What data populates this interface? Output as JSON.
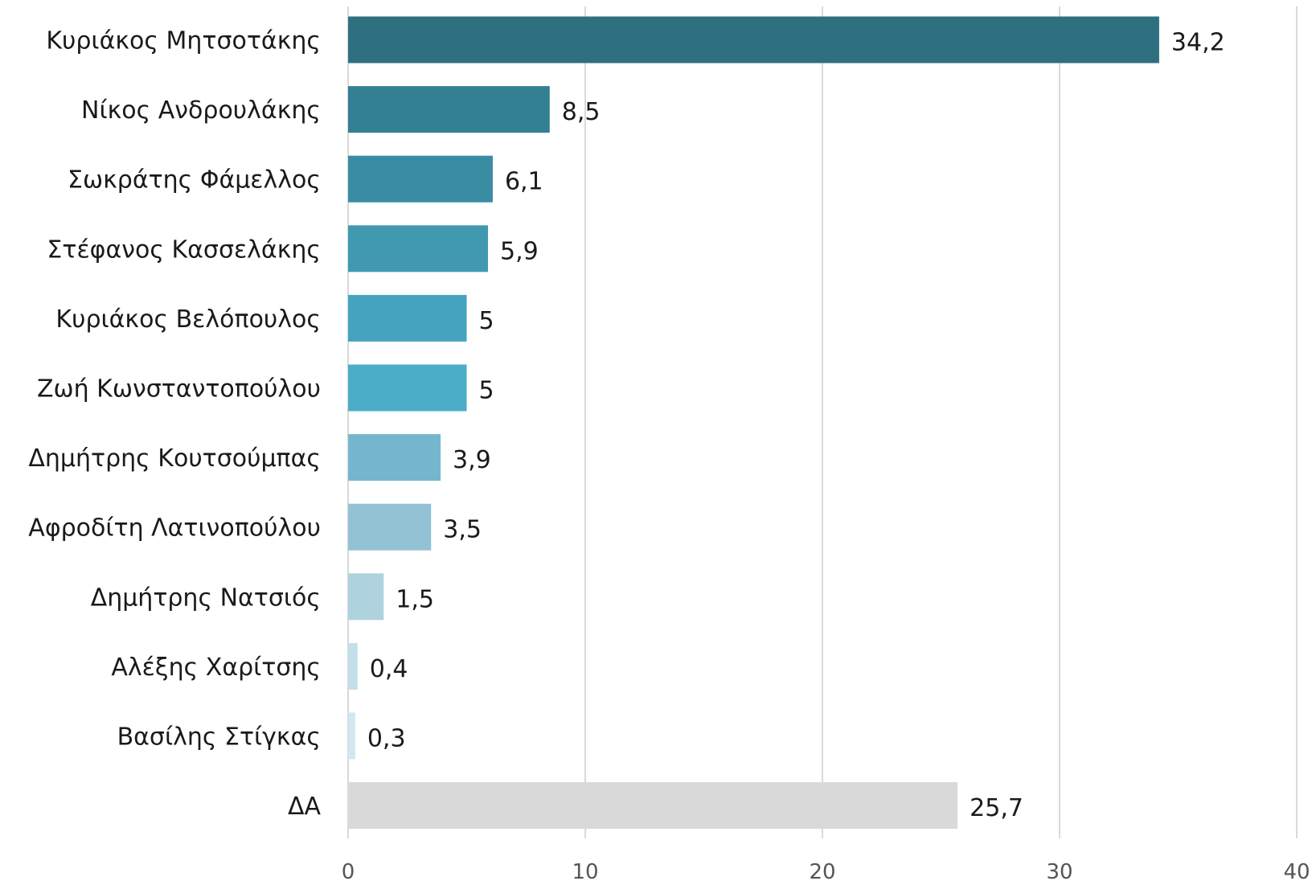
{
  "chart_data": {
    "type": "bar",
    "orientation": "horizontal",
    "categories": [
      "Κυριάκος Μητσοτάκης",
      "Νίκος Ανδρουλάκης",
      "Σωκράτης Φάμελλος",
      "Στέφανος Κασσελάκης",
      "Κυριάκος Βελόπουλος",
      "Ζωή Κωνσταντοπούλου",
      "Δημήτρης Κουτσούμπας",
      "Αφροδίτη Λατινοπούλου",
      "Δημήτρης Νατσιός",
      "Αλέξης Χαρίτσης",
      "Βασίλης Στίγκας",
      "ΔΑ"
    ],
    "values": [
      34.2,
      8.5,
      6.1,
      5.9,
      5,
      5,
      3.9,
      3.5,
      1.5,
      0.4,
      0.3,
      25.7
    ],
    "value_labels": [
      "34,2",
      "8,5",
      "6,1",
      "5,9",
      "5",
      "5",
      "3,9",
      "3,5",
      "1,5",
      "0,4",
      "0,3",
      "25,7"
    ],
    "colors": [
      "#2e7080",
      "#337f93",
      "#3a8ca3",
      "#4199b1",
      "#45a3bf",
      "#4cadc8",
      "#74b7cc",
      "#93c2d4",
      "#afd2df",
      "#c3dfe9",
      "#d2e7ef",
      "#d9d9d9"
    ],
    "xlim": [
      0,
      40
    ],
    "xticks": [
      0,
      10,
      20,
      30,
      40
    ],
    "grid": true,
    "title": "",
    "xlabel": "",
    "ylabel": ""
  }
}
